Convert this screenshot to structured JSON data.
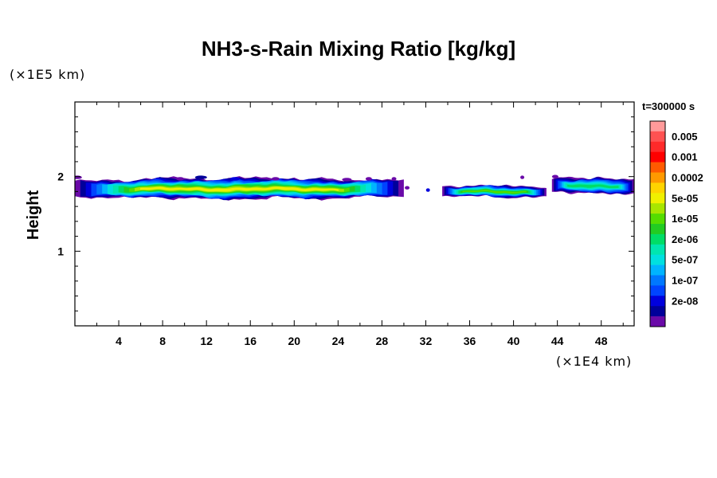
{
  "chart_data": {
    "type": "heatmap",
    "title": "NH3-s-Rain Mixing Ratio [kg/kg]",
    "xlabel": "",
    "ylabel": "Height",
    "x_unit": "(×1E4 km)",
    "y_unit": "(×1E5 km)",
    "time_label": "t=300000 s",
    "xlim": [
      0,
      51
    ],
    "ylim": [
      0,
      3
    ],
    "x_ticks": [
      4,
      8,
      12,
      16,
      20,
      24,
      28,
      32,
      36,
      40,
      44,
      48
    ],
    "y_ticks": [
      1,
      2
    ],
    "colorbar": {
      "levels": [
        {
          "label": "",
          "color": "#ff9a9a"
        },
        {
          "label": "0.005",
          "color": "#ff5252"
        },
        {
          "label": "",
          "color": "#ff2a2a"
        },
        {
          "label": "0.001",
          "color": "#ff0000"
        },
        {
          "label": "",
          "color": "#ff5a00"
        },
        {
          "label": "0.0002",
          "color": "#ff9900"
        },
        {
          "label": "",
          "color": "#ffd400"
        },
        {
          "label": "5e-05",
          "color": "#f0f000"
        },
        {
          "label": "",
          "color": "#a8e600"
        },
        {
          "label": "1e-05",
          "color": "#55dd00"
        },
        {
          "label": "",
          "color": "#22cc22"
        },
        {
          "label": "2e-06",
          "color": "#00dd66"
        },
        {
          "label": "",
          "color": "#00e6b0"
        },
        {
          "label": "5e-07",
          "color": "#00e0e0"
        },
        {
          "label": "",
          "color": "#00b4ff"
        },
        {
          "label": "1e-07",
          "color": "#0078ff"
        },
        {
          "label": "",
          "color": "#0044ff"
        },
        {
          "label": "2e-08",
          "color": "#0000dd"
        },
        {
          "label": "",
          "color": "#00009a"
        },
        {
          "label": "",
          "color": "#6a0aa8"
        }
      ]
    },
    "regions": [
      {
        "x_start": 0,
        "x_end": 30,
        "y_bottom": 1.7,
        "y_top": 2.0,
        "max_level": "5e-05"
      },
      {
        "x_start": 33.5,
        "x_end": 43,
        "y_bottom": 1.73,
        "y_top": 1.9,
        "max_level": "1e-05"
      },
      {
        "x_start": 43.5,
        "x_end": 51,
        "y_bottom": 1.77,
        "y_top": 2.01,
        "max_level": "2e-06"
      }
    ],
    "grid": false,
    "legend": "right"
  }
}
